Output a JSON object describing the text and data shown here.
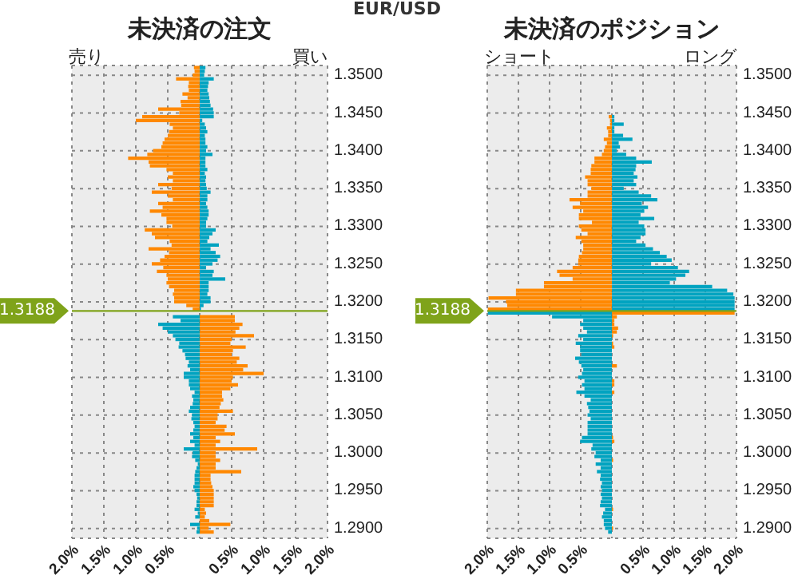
{
  "chart_data": [
    {
      "type": "bar",
      "orientation": "horizontal",
      "stacked": true,
      "title": "未決済の注文",
      "annotations": [
        "売り",
        "買い",
        "EUR/USD"
      ],
      "x": [
        1.351,
        1.3505,
        1.35,
        1.3495,
        1.349,
        1.3485,
        1.348,
        1.3475,
        1.347,
        1.3465,
        1.346,
        1.3455,
        1.345,
        1.3445,
        1.344,
        1.3435,
        1.343,
        1.3425,
        1.342,
        1.3415,
        1.341,
        1.3405,
        1.34,
        1.3395,
        1.339,
        1.3385,
        1.338,
        1.3375,
        1.337,
        1.3365,
        1.336,
        1.3355,
        1.335,
        1.3345,
        1.334,
        1.3335,
        1.333,
        1.3325,
        1.332,
        1.3315,
        1.331,
        1.3305,
        1.33,
        1.3295,
        1.329,
        1.3285,
        1.328,
        1.3275,
        1.327,
        1.3265,
        1.326,
        1.3255,
        1.325,
        1.3245,
        1.324,
        1.3235,
        1.323,
        1.3225,
        1.322,
        1.3215,
        1.321,
        1.3205,
        1.32,
        1.3195,
        1.319,
        1.3185,
        1.318,
        1.3175,
        1.317,
        1.3165,
        1.316,
        1.3155,
        1.315,
        1.3145,
        1.314,
        1.3135,
        1.313,
        1.3125,
        1.312,
        1.3115,
        1.311,
        1.3105,
        1.31,
        1.3095,
        1.309,
        1.3085,
        1.308,
        1.3075,
        1.307,
        1.3065,
        1.306,
        1.3055,
        1.305,
        1.3045,
        1.304,
        1.3035,
        1.303,
        1.3025,
        1.302,
        1.3015,
        1.301,
        1.3005,
        1.3,
        1.2995,
        1.299,
        1.2985,
        1.298,
        1.2975,
        1.297,
        1.2965,
        1.296,
        1.2955,
        1.295,
        1.2945,
        1.294,
        1.2935,
        1.293,
        1.2925,
        1.292,
        1.2915,
        1.291,
        1.2905,
        1.29,
        1.2895
      ],
      "series": [
        {
          "color": "#ff8800",
          "values": [
            -0.09,
            -0.08,
            -0.11,
            -0.37,
            -0.17,
            -0.18,
            -0.17,
            -0.27,
            -0.19,
            -0.3,
            -0.29,
            -0.65,
            -0.32,
            -0.9,
            -1.0,
            -0.47,
            -0.42,
            -0.48,
            -0.5,
            -0.55,
            -0.58,
            -0.6,
            -0.73,
            -0.82,
            -1.12,
            -0.8,
            -0.78,
            -0.52,
            -0.42,
            -0.5,
            -0.42,
            -0.65,
            -0.44,
            -0.75,
            -0.5,
            -0.42,
            -0.65,
            -0.58,
            -0.78,
            -0.6,
            -0.52,
            -0.52,
            -0.43,
            -0.86,
            -0.75,
            -0.7,
            -0.47,
            -0.44,
            -0.8,
            -0.48,
            -0.55,
            -0.62,
            -0.75,
            -0.57,
            -0.67,
            -0.52,
            -0.5,
            -0.52,
            -0.48,
            -0.4,
            -0.42,
            -0.4,
            -0.4,
            -0.21,
            -0.11,
            null,
            0.55,
            0.55,
            0.67,
            0.62,
            0.56,
            0.85,
            0.5,
            0.48,
            0.72,
            0.52,
            0.5,
            0.62,
            0.58,
            0.75,
            0.68,
            1.0,
            0.52,
            0.5,
            0.6,
            0.48,
            0.35,
            0.35,
            0.37,
            0.33,
            0.31,
            0.52,
            0.28,
            0.28,
            0.25,
            0.42,
            0.39,
            0.55,
            0.25,
            0.32,
            0.25,
            0.9,
            0.25,
            0.25,
            0.32,
            0.25,
            0.25,
            0.65,
            0.17,
            0.17,
            0.18,
            0.2,
            0.22,
            0.22,
            0.22,
            0.22,
            0.22,
            0.08,
            0.1,
            0.08,
            0.15,
            0.48,
            0.14,
            0.22
          ]
        },
        {
          "color": "#00a3c0",
          "values": [
            0.09,
            0.08,
            0.07,
            0.22,
            0.14,
            0.13,
            0.12,
            0.14,
            0.15,
            0.16,
            0.17,
            0.21,
            0.22,
            0.22,
            0.04,
            0.08,
            0.1,
            0.12,
            0.08,
            0.09,
            0.09,
            0.12,
            0.1,
            0.2,
            0.09,
            0.09,
            0.09,
            0.12,
            0.08,
            0.1,
            0.09,
            0.1,
            0.11,
            0.17,
            0.12,
            0.12,
            0.1,
            0.12,
            0.14,
            0.14,
            0.12,
            0.1,
            0.1,
            0.25,
            0.2,
            0.15,
            0.12,
            0.3,
            0.17,
            0.25,
            0.32,
            0.28,
            0.2,
            0.1,
            0.22,
            0.2,
            0.4,
            0.14,
            0.14,
            0.14,
            0.12,
            0.17,
            0.17,
            0.06,
            0.02,
            null,
            -0.42,
            -0.3,
            -0.65,
            -0.58,
            -0.5,
            -0.42,
            -0.38,
            -0.32,
            -0.33,
            -0.27,
            -0.23,
            -0.22,
            -0.17,
            -0.19,
            -0.15,
            -0.25,
            -0.25,
            -0.17,
            -0.17,
            -0.15,
            -0.08,
            -0.12,
            -0.1,
            -0.11,
            -0.15,
            -0.17,
            -0.12,
            -0.13,
            -0.1,
            -0.08,
            -0.1,
            -0.15,
            -0.1,
            -0.15,
            -0.08,
            -0.25,
            -0.11,
            -0.12,
            -0.07,
            -0.03,
            -0.05,
            -0.07,
            -0.08,
            -0.08,
            -0.08,
            -0.1,
            -0.08,
            -0.05,
            -0.04,
            -0.05,
            -0.05,
            -0.08,
            -0.03,
            -0.07,
            null,
            -0.15,
            -0.04,
            -0.05
          ]
        }
      ],
      "xlim": [
        -2,
        2
      ],
      "xticks": [
        {
          "value": -2,
          "label": "2.0%"
        },
        {
          "value": -1.5,
          "label": "1.5%"
        },
        {
          "value": -1,
          "label": "1.0%"
        },
        {
          "value": -0.5,
          "label": "0.5%"
        },
        {
          "value": 0,
          "label": null
        },
        {
          "value": 0.5,
          "label": "0.5%"
        },
        {
          "value": 1,
          "label": "1.0%"
        },
        {
          "value": 1.5,
          "label": "1.5%"
        },
        {
          "value": 2,
          "label": "2.0%"
        }
      ],
      "ylim": [
        1.2887,
        1.3513
      ],
      "yticks": [
        {
          "value": 1.29,
          "label": "1.2900"
        },
        {
          "value": 1.295,
          "label": "1.2950"
        },
        {
          "value": 1.3,
          "label": "1.3000"
        },
        {
          "value": 1.305,
          "label": "1.3050"
        },
        {
          "value": 1.31,
          "label": "1.3100"
        },
        {
          "value": 1.315,
          "label": "1.3150"
        },
        {
          "value": 1.32,
          "label": "1.3200"
        },
        {
          "value": 1.325,
          "label": "1.3250"
        },
        {
          "value": 1.33,
          "label": "1.3300"
        },
        {
          "value": 1.335,
          "label": "1.3350"
        },
        {
          "value": 1.34,
          "label": "1.3400"
        },
        {
          "value": 1.345,
          "label": "1.3450"
        },
        {
          "value": 1.35,
          "label": "1.3500"
        }
      ],
      "ref_lines": [
        {
          "axis": "y",
          "value": 1.3188,
          "label": "1.3188",
          "color": "#7fa31a"
        }
      ],
      "grid": true
    },
    {
      "type": "bar",
      "orientation": "horizontal",
      "stacked": true,
      "title": "未決済のポジション",
      "annotations": [
        "ショート",
        "ロング"
      ],
      "x": [
        1.3445,
        1.344,
        1.3435,
        1.343,
        1.3425,
        1.342,
        1.3415,
        1.341,
        1.3405,
        1.34,
        1.3395,
        1.339,
        1.3385,
        1.338,
        1.3375,
        1.337,
        1.3365,
        1.336,
        1.3355,
        1.335,
        1.3345,
        1.334,
        1.3335,
        1.333,
        1.3325,
        1.332,
        1.3315,
        1.331,
        1.3305,
        1.33,
        1.3295,
        1.329,
        1.3285,
        1.328,
        1.3275,
        1.327,
        1.3265,
        1.326,
        1.3255,
        1.325,
        1.3245,
        1.324,
        1.3235,
        1.323,
        1.3225,
        1.322,
        1.3215,
        1.321,
        1.3205,
        1.32,
        1.3195,
        1.319,
        1.3185,
        1.318,
        1.3175,
        1.317,
        1.3165,
        1.316,
        1.3155,
        1.315,
        1.3145,
        1.314,
        1.3135,
        1.313,
        1.3125,
        1.312,
        1.3115,
        1.311,
        1.3105,
        1.31,
        1.3095,
        1.309,
        1.3085,
        1.308,
        1.3075,
        1.307,
        1.3065,
        1.306,
        1.3055,
        1.305,
        1.3045,
        1.304,
        1.3035,
        1.303,
        1.3025,
        1.302,
        1.3015,
        1.301,
        1.3005,
        1.3,
        1.2995,
        1.299,
        1.2985,
        1.298,
        1.2975,
        1.297,
        1.2965,
        1.296,
        1.2955,
        1.295,
        1.2945,
        1.294,
        1.2935,
        1.293,
        1.2925,
        1.292,
        1.2915,
        1.291,
        1.2905,
        1.29,
        1.2895
      ],
      "series": [
        {
          "color": "#ff8800",
          "values": [
            -0.05,
            -0.03,
            -0.03,
            -0.08,
            -0.06,
            -0.06,
            -0.13,
            -0.08,
            -0.11,
            -0.13,
            -0.16,
            -0.28,
            -0.28,
            -0.33,
            -0.34,
            -0.34,
            -0.43,
            -0.39,
            -0.39,
            -0.33,
            -0.39,
            -0.39,
            -0.68,
            -0.51,
            -0.63,
            -0.46,
            -0.53,
            -0.53,
            -0.32,
            -0.53,
            -0.49,
            -0.39,
            -0.58,
            -0.49,
            -0.46,
            -0.46,
            -0.48,
            -0.53,
            -0.54,
            -0.54,
            -0.63,
            -0.88,
            -0.84,
            -0.63,
            -1.09,
            -1.09,
            -1.54,
            -1.54,
            -1.98,
            -1.7,
            -1.68,
            -1.99,
            1.97,
            0.08,
            0.04,
            0.04,
            0.1,
            0.08,
            0.02,
            null,
            0.02,
            0.04,
            null,
            null,
            null,
            null,
            0.08,
            null,
            null,
            null,
            0.04,
            0.04,
            null,
            0.04,
            null,
            null,
            null,
            null,
            null,
            null,
            null,
            null,
            null,
            null,
            null,
            0.02,
            0.04,
            null,
            null,
            null,
            null,
            0.02,
            null,
            null,
            null,
            null,
            null,
            null,
            null,
            null,
            null,
            null,
            null,
            null,
            0.02,
            null,
            null,
            null,
            null,
            0.02,
            null
          ]
        },
        {
          "color": "#00a3c0",
          "values": [
            0.04,
            0.04,
            0.19,
            0.04,
            0.04,
            0.18,
            0.33,
            0.11,
            0.13,
            0.08,
            0.23,
            0.39,
            0.64,
            0.39,
            0.38,
            0.35,
            0.41,
            0.35,
            0.39,
            0.19,
            0.43,
            0.63,
            0.73,
            0.48,
            0.58,
            0.52,
            0.46,
            0.68,
            0.43,
            0.52,
            0.54,
            0.54,
            0.46,
            0.39,
            0.54,
            0.66,
            0.77,
            0.88,
            0.96,
            0.63,
            1.06,
            1.24,
            1.18,
            1.03,
            0.93,
            1.61,
            1.85,
            1.95,
            1.97,
            1.97,
            1.97,
            1.97,
            -1.99,
            -0.96,
            -0.46,
            -0.51,
            -0.46,
            -0.4,
            -0.54,
            -0.46,
            -0.58,
            -0.51,
            -0.51,
            -0.49,
            -0.59,
            -0.53,
            -0.49,
            -0.46,
            -0.48,
            -0.54,
            -0.44,
            -0.48,
            -0.44,
            -0.57,
            -0.44,
            -0.34,
            -0.4,
            -0.38,
            -0.36,
            -0.39,
            -0.34,
            -0.39,
            -0.39,
            -0.39,
            -0.39,
            -0.48,
            -0.51,
            -0.31,
            -0.33,
            -0.26,
            -0.28,
            -0.18,
            -0.26,
            -0.18,
            -0.24,
            -0.18,
            -0.19,
            -0.16,
            -0.18,
            -0.16,
            -0.18,
            -0.16,
            -0.18,
            -0.19,
            -0.11,
            -0.14,
            -0.16,
            -0.13,
            -0.13,
            -0.11,
            -0.06
          ]
        }
      ],
      "xlim": [
        -2,
        2
      ],
      "xticks": [
        {
          "value": -2,
          "label": "2.0%"
        },
        {
          "value": -1.5,
          "label": "1.5%"
        },
        {
          "value": -1,
          "label": "1.0%"
        },
        {
          "value": -0.5,
          "label": "0.5%"
        },
        {
          "value": 0,
          "label": null
        },
        {
          "value": 0.5,
          "label": "0.5%"
        },
        {
          "value": 1,
          "label": "1.0%"
        },
        {
          "value": 1.5,
          "label": "1.5%"
        },
        {
          "value": 2,
          "label": "2.0%"
        }
      ],
      "ylim": [
        1.2887,
        1.3513
      ],
      "yticks": [
        {
          "value": 1.29,
          "label": "1.2900"
        },
        {
          "value": 1.295,
          "label": "1.2950"
        },
        {
          "value": 1.3,
          "label": "1.3000"
        },
        {
          "value": 1.305,
          "label": "1.3050"
        },
        {
          "value": 1.31,
          "label": "1.3100"
        },
        {
          "value": 1.315,
          "label": "1.3150"
        },
        {
          "value": 1.32,
          "label": "1.3200"
        },
        {
          "value": 1.325,
          "label": "1.3250"
        },
        {
          "value": 1.33,
          "label": "1.3300"
        },
        {
          "value": 1.335,
          "label": "1.3350"
        },
        {
          "value": 1.34,
          "label": "1.3400"
        },
        {
          "value": 1.345,
          "label": "1.3450"
        },
        {
          "value": 1.35,
          "label": "1.3500"
        }
      ],
      "ref_lines": [
        {
          "axis": "y",
          "value": 1.3188,
          "label": "1.3188",
          "color": "#7fa31a"
        }
      ],
      "grid": true
    }
  ]
}
